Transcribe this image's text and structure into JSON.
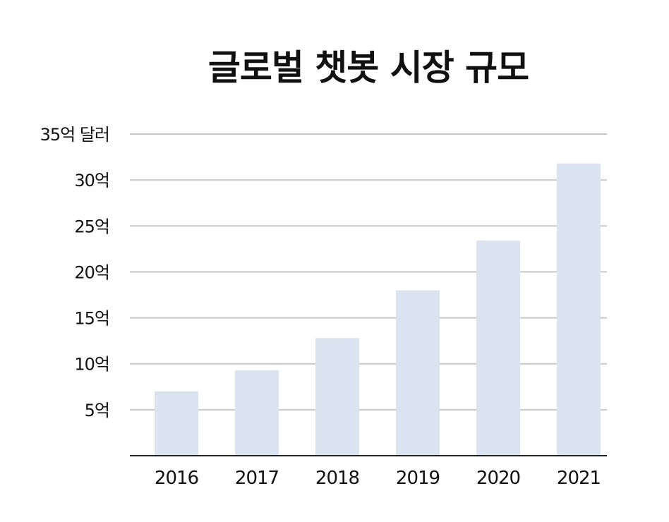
{
  "chart_data": {
    "type": "bar",
    "title": "글로벌 챗봇 시장 규모",
    "xlabel": "",
    "ylabel": "",
    "categories": [
      "2016",
      "2017",
      "2018",
      "2019",
      "2020",
      "2021"
    ],
    "values": [
      7.0,
      9.3,
      12.8,
      18.0,
      23.4,
      31.8
    ],
    "ylim": [
      0,
      35
    ],
    "yticks": [
      5,
      10,
      15,
      20,
      25,
      30,
      35
    ],
    "ytick_labels": [
      "5억",
      "10억",
      "15억",
      "20억",
      "25억",
      "30억",
      "35억 달러"
    ],
    "grid": true,
    "legend": "none",
    "colors": {
      "bar": "#dbe3f1",
      "grid": "#c8c8c8",
      "axis": "#222222"
    }
  }
}
